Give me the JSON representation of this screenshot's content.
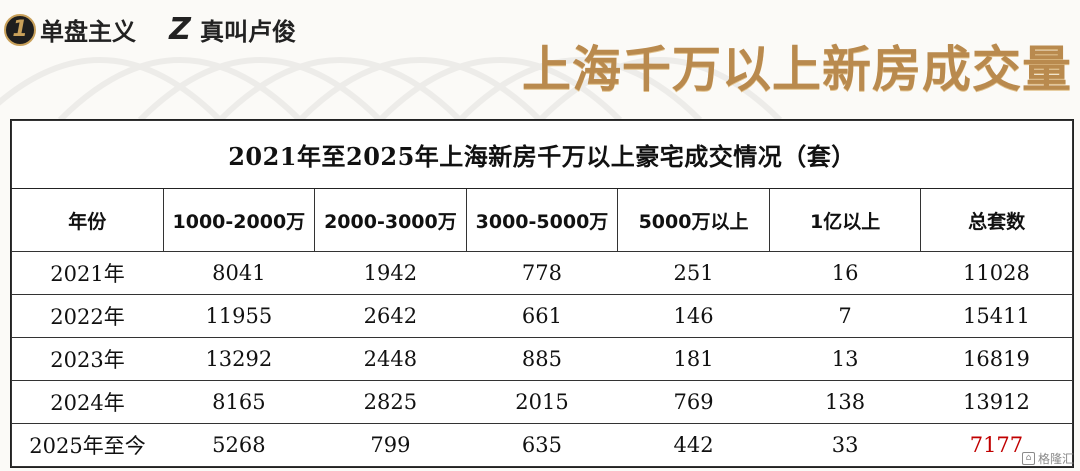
{
  "header": {
    "logo1": {
      "mark": "1",
      "text": "单盘主义"
    },
    "logo2": {
      "mark": "Z",
      "text": "真叫卢俊"
    },
    "headline": "上海千万以上新房成交量",
    "accent_color": "#b98a4e"
  },
  "table": {
    "caption": "2021年至2025年上海新房千万以上豪宅成交情况（套）",
    "columns": [
      "年份",
      "1000-2000万",
      "2000-3000万",
      "3000-5000万",
      "5000万以上",
      "1亿以上",
      "总套数"
    ],
    "rows": [
      [
        "2021年",
        "8041",
        "1942",
        "778",
        "251",
        "16",
        "11028"
      ],
      [
        "2022年",
        "11955",
        "2642",
        "661",
        "146",
        "7",
        "15411"
      ],
      [
        "2023年",
        "13292",
        "2448",
        "885",
        "181",
        "13",
        "16819"
      ],
      [
        "2024年",
        "8165",
        "2825",
        "2015",
        "769",
        "138",
        "13912"
      ],
      [
        "2025年至今",
        "5268",
        "799",
        "635",
        "442",
        "33",
        "7177"
      ]
    ],
    "highlight_color": "#c00000"
  },
  "watermark": {
    "icon": "watermark-icon",
    "text": "格隆汇"
  }
}
